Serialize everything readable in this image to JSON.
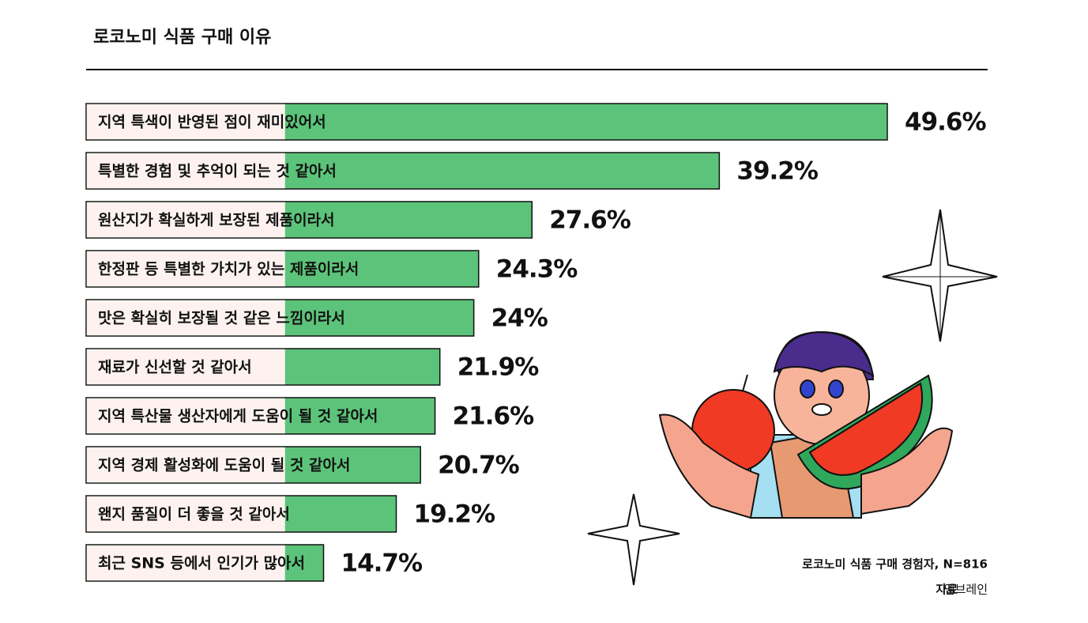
{
  "chart_data": {
    "type": "bar",
    "title": "로코노미 식품 구매 이유",
    "categories": [
      "지역 특색이 반영된 점이 재미있어서",
      "특별한 경험 및 추억이 되는 것 같아서",
      "원산지가 확실하게 보장된 제품이라서",
      "한정판 등 특별한 가치가 있는 제품이라서",
      "맛은 확실히 보장될 것 같은 느낌이라서",
      "재료가 신선할 것 같아서",
      "지역 특산물 생산자에게 도움이 될 것 같아서",
      "지역 경제 활성화에 도움이 될 것 같아서",
      "왠지 품질이 더 좋을 것 같아서",
      "최근 SNS 등에서 인기가 많아서"
    ],
    "values": [
      49.6,
      39.2,
      27.6,
      24.3,
      24,
      21.9,
      21.6,
      20.7,
      19.2,
      14.7
    ],
    "value_labels": [
      "49.6%",
      "39.2%",
      "27.6%",
      "24.3%",
      "24%",
      "21.9%",
      "21.6%",
      "20.7%",
      "19.2%",
      "14.7%"
    ],
    "color": "#5cc47a",
    "note": "로코노미 식품 구매 경험자, N=816",
    "source_label": "자료",
    "source": "엠브레인"
  }
}
